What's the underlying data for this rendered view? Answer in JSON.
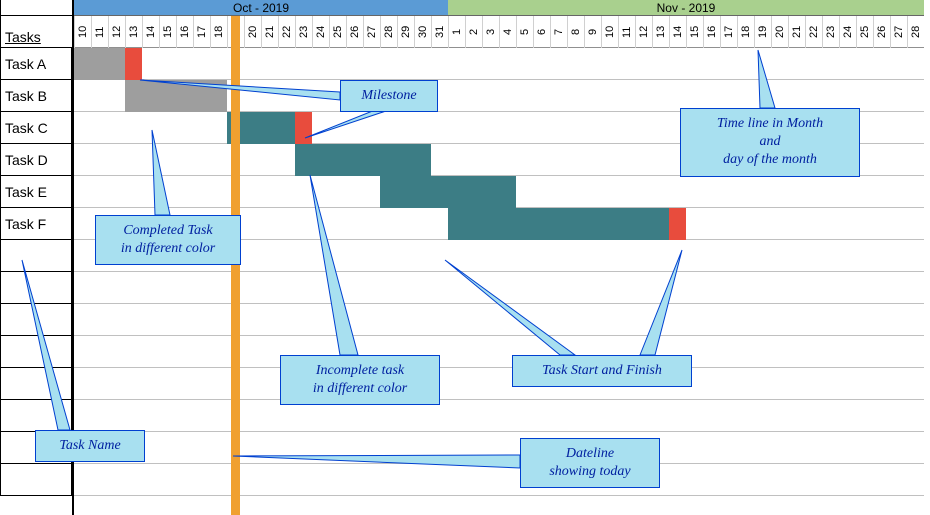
{
  "timeline": {
    "dayWidth": 17,
    "months": [
      {
        "label": "Oct - 2019",
        "days": 22,
        "color": "#5b9bd5"
      },
      {
        "label": "Nov - 2019",
        "days": 28,
        "color": "#a9d08e"
      }
    ],
    "octDays": [
      10,
      11,
      12,
      13,
      14,
      15,
      16,
      17,
      18,
      19,
      20,
      21,
      22,
      23,
      24,
      25,
      26,
      27,
      28,
      29,
      30,
      31
    ],
    "novDays": [
      1,
      2,
      3,
      4,
      5,
      6,
      7,
      8,
      9,
      10,
      11,
      12,
      13,
      14,
      15,
      16,
      17,
      18,
      19,
      20,
      21,
      22,
      23,
      24,
      25,
      26,
      27,
      28
    ],
    "todayIndex": 9
  },
  "headerLabel": "Tasks",
  "tasks": [
    {
      "label": "Task A",
      "startIdx": 0,
      "span": 3,
      "color": "#9e9e9e",
      "milestoneAt": 3,
      "milestoneColor": "#e84c3d"
    },
    {
      "label": "Task B",
      "startIdx": 3,
      "span": 6,
      "color": "#9e9e9e"
    },
    {
      "label": "Task C",
      "startIdx": 9,
      "span": 4,
      "color": "#3c7d85",
      "milestoneAt": 13,
      "milestoneColor": "#e84c3d"
    },
    {
      "label": "Task D",
      "startIdx": 13,
      "span": 8,
      "color": "#3c7d85"
    },
    {
      "label": "Task E",
      "startIdx": 18,
      "span": 8,
      "color": "#3c7d85"
    },
    {
      "label": "Task F",
      "startIdx": 22,
      "span": 13,
      "color": "#3c7d85",
      "milestoneAt": 35,
      "milestoneColor": "#e84c3d"
    },
    {
      "label": ""
    },
    {
      "label": ""
    },
    {
      "label": ""
    },
    {
      "label": ""
    },
    {
      "label": ""
    },
    {
      "label": ""
    },
    {
      "label": ""
    },
    {
      "label": ""
    }
  ],
  "callouts": {
    "milestone": "Milestone",
    "timelineMonth": "Time line in Month\nand\nday of the month",
    "completedTask": "Completed Task\nin different color",
    "incompleteTask": "Incomplete task\nin different color",
    "taskStartFinish": "Task Start and Finish",
    "taskName": "Task Name",
    "dateline": "Dateline\nshowing today"
  },
  "colors": {
    "calloutFill": "#a8e0f0",
    "calloutBorder": "#0040d0",
    "calloutText": "#0020a0",
    "todayLine": "#f0a030"
  }
}
